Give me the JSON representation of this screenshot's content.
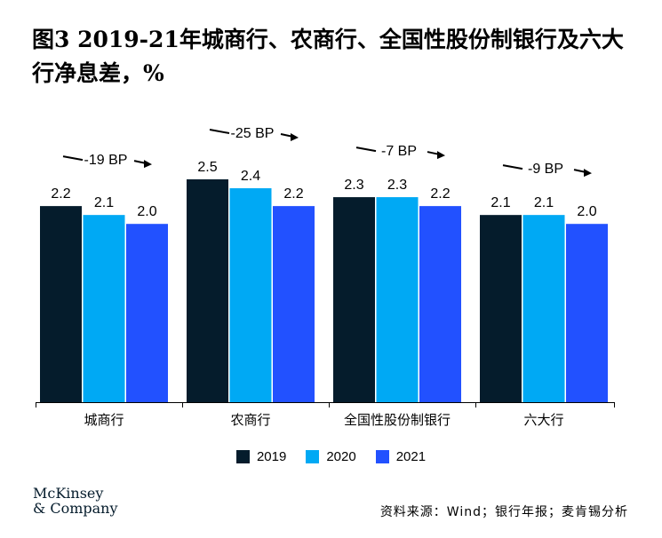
{
  "title": "图3 2019-21年城商行、农商行、全国性股份制银行及六大行净息差，%",
  "colors": {
    "2019": "#051c2c",
    "2020": "#00a9f4",
    "2021": "#2251ff",
    "axis": "#000000"
  },
  "chart_data": {
    "type": "bar",
    "title": "图3 2019-21年城商行、农商行、全国性股份制银行及六大行净息差，%",
    "categories": [
      "城商行",
      "农商行",
      "全国性股份制银行",
      "六大行"
    ],
    "series": [
      {
        "name": "2019",
        "values": [
          2.2,
          2.5,
          2.3,
          2.1
        ]
      },
      {
        "name": "2020",
        "values": [
          2.1,
          2.4,
          2.3,
          2.1
        ]
      },
      {
        "name": "2021",
        "values": [
          2.0,
          2.2,
          2.2,
          2.0
        ]
      }
    ],
    "value_labels": [
      [
        "2.2",
        "2.1",
        "2.0"
      ],
      [
        "2.5",
        "2.4",
        "2.2"
      ],
      [
        "2.3",
        "2.3",
        "2.2"
      ],
      [
        "2.1",
        "2.1",
        "2.0"
      ]
    ],
    "annotations": [
      "-19 BP",
      "-25 BP",
      "-7 BP",
      "-9 BP"
    ],
    "ylim": [
      0,
      2.5
    ],
    "xlabel": "",
    "ylabel": "",
    "legend": "bottom-center",
    "grid": false
  },
  "legend": {
    "items": [
      "2019",
      "2020",
      "2021"
    ]
  },
  "footer": {
    "logo_line1": "McKinsey",
    "logo_line2": "& Company",
    "source": "资料来源：Wind；银行年报；麦肯锡分析"
  }
}
